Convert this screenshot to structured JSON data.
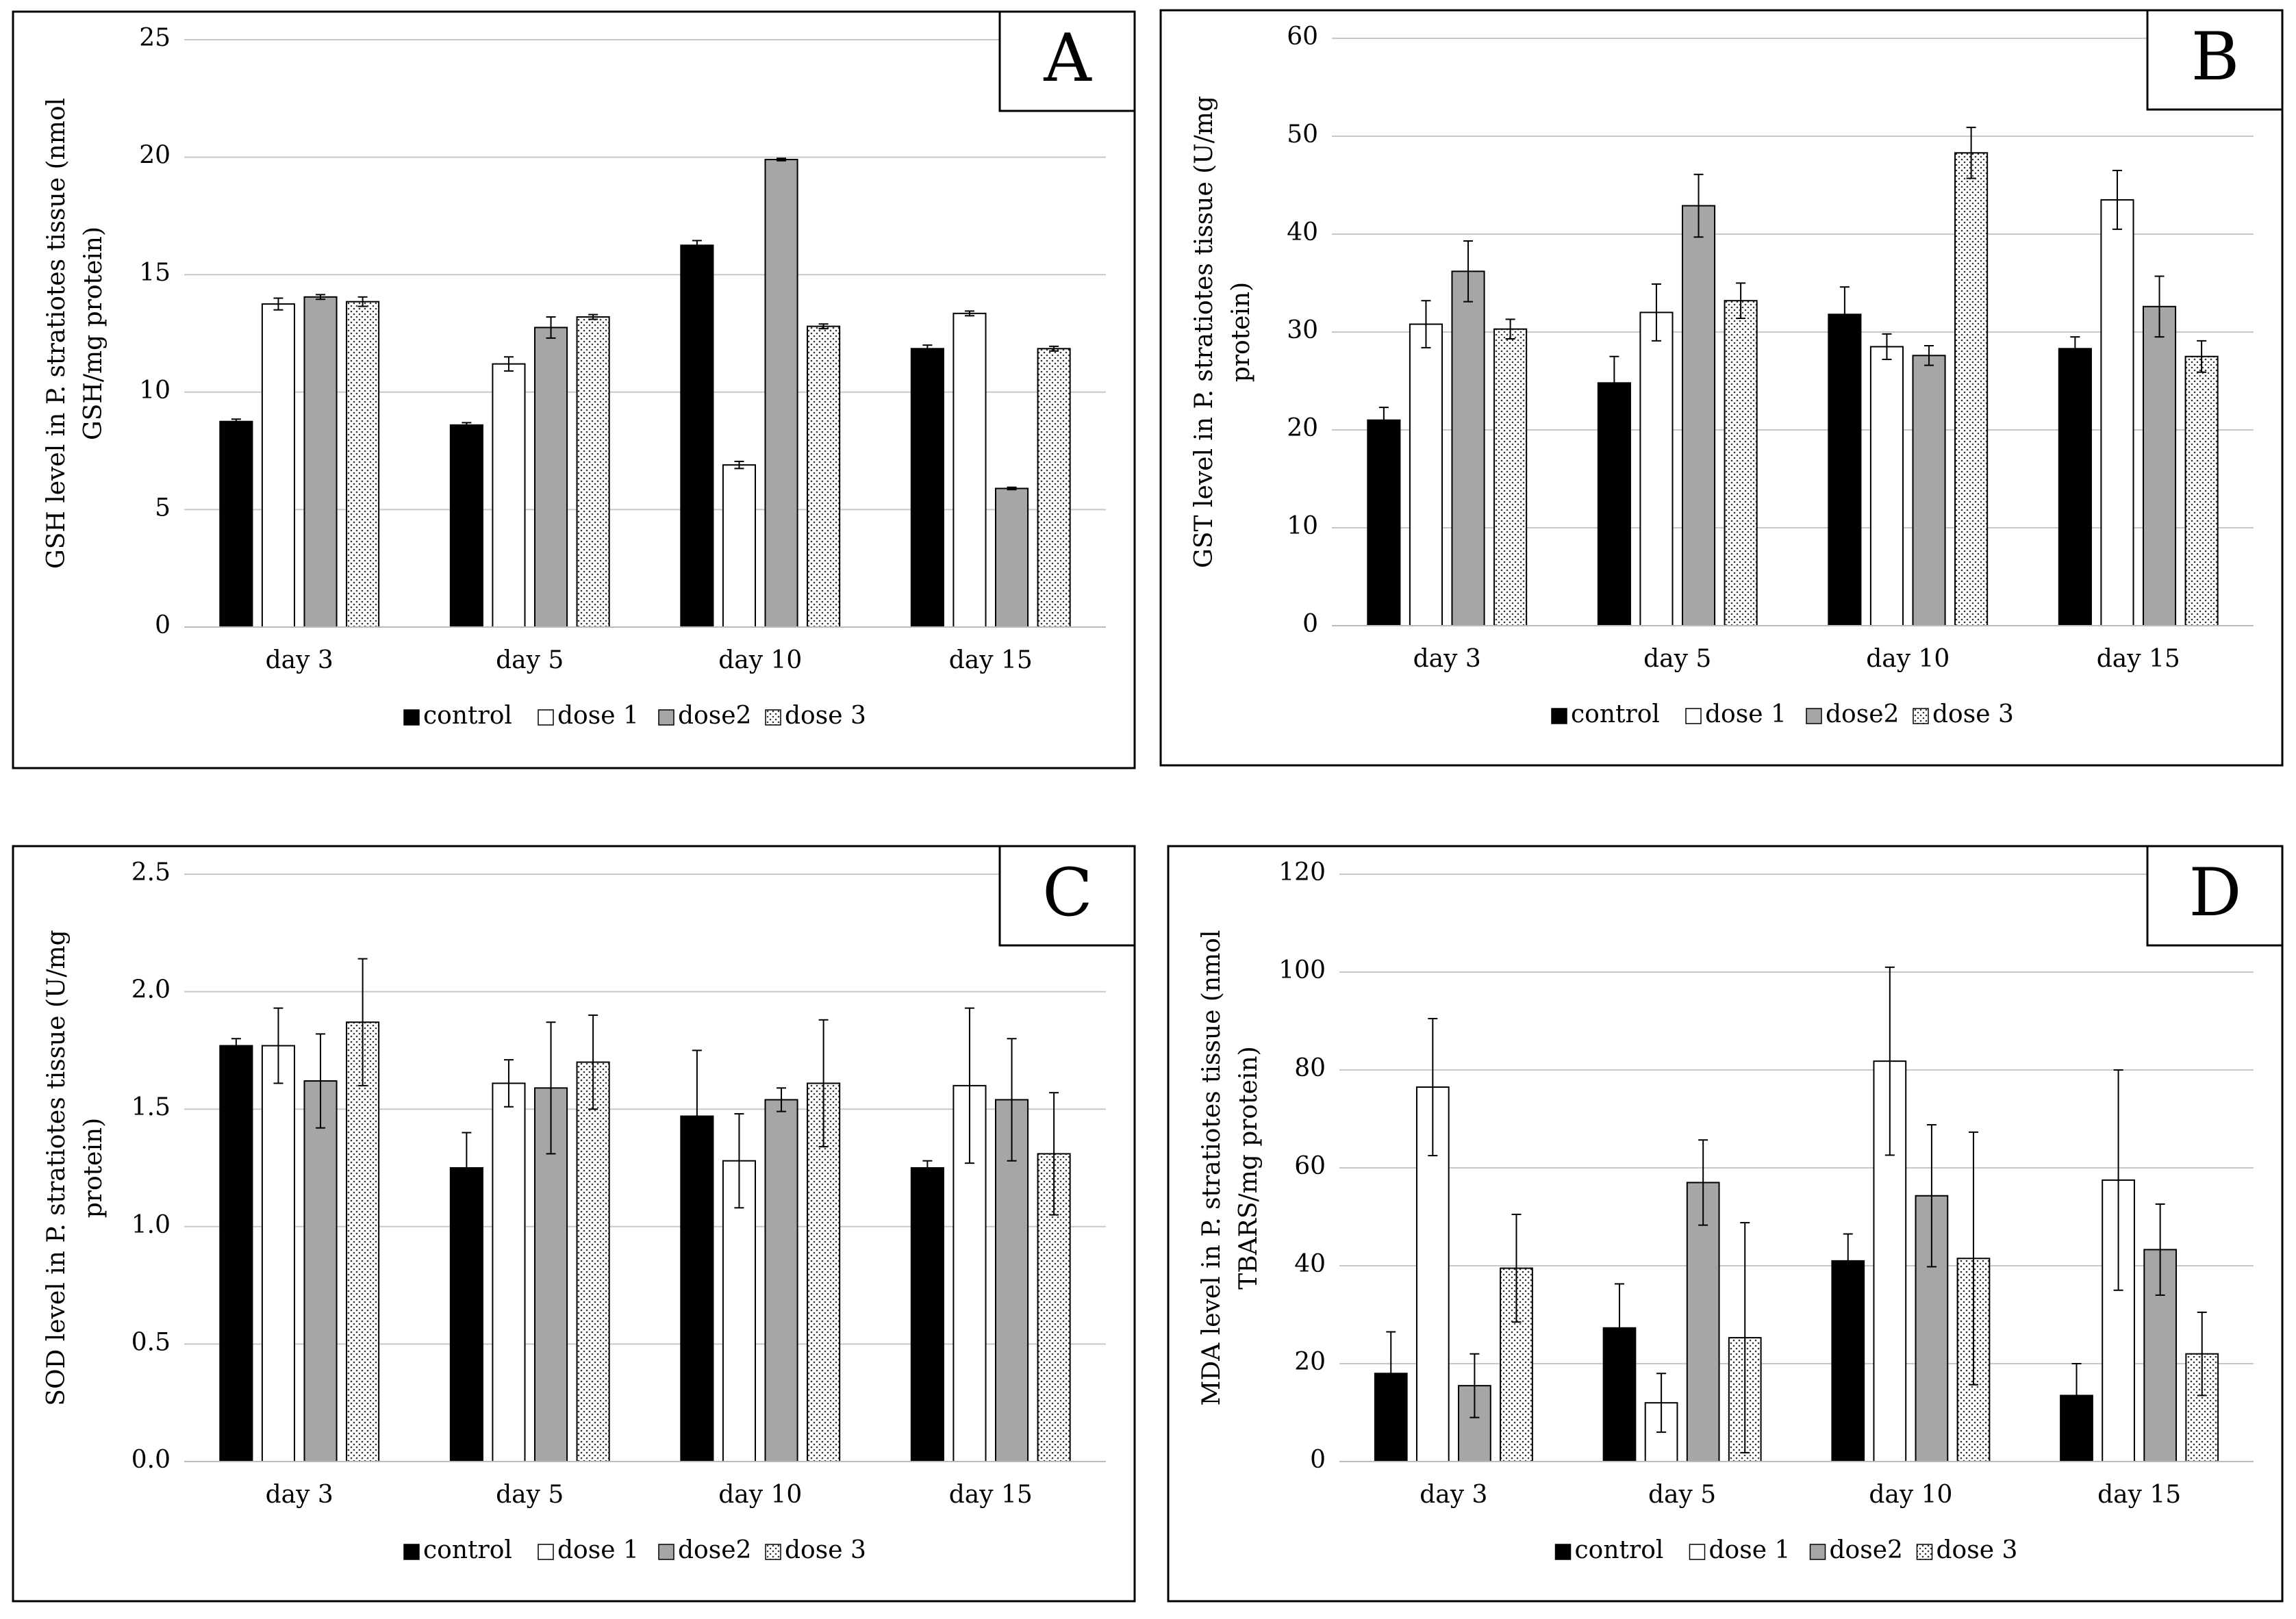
{
  "chart_data": [
    {
      "type": "bar",
      "panel_label": "A",
      "ylabel": [
        "GSH level in P. stratiotes tissue (nmol",
        "GSH/mg protein)"
      ],
      "categories": [
        "day 3",
        "day 5",
        "day 10",
        "day 15"
      ],
      "ylim": [
        0,
        25
      ],
      "yticks": [
        0,
        5,
        10,
        15,
        20,
        25
      ],
      "grid": true,
      "legend": "bottom",
      "series": [
        {
          "name": "control",
          "color": "#000000",
          "values": [
            8.75,
            8.6,
            16.25,
            11.85
          ],
          "errors": [
            0.1,
            0.1,
            0.2,
            0.15
          ]
        },
        {
          "name": "dose 1",
          "color": "#ffffff",
          "values": [
            13.75,
            11.2,
            6.9,
            13.35
          ],
          "errors": [
            0.25,
            0.3,
            0.15,
            0.1
          ]
        },
        {
          "name": "dose2",
          "color": "#a6a6a6",
          "values": [
            14.05,
            12.75,
            19.9,
            5.9
          ],
          "errors": [
            0.1,
            0.45,
            0.05,
            0.05
          ]
        },
        {
          "name": "dose 3",
          "color": "#ffffff",
          "hatch": "dots",
          "values": [
            13.85,
            13.2,
            12.8,
            11.85
          ],
          "errors": [
            0.2,
            0.1,
            0.1,
            0.1
          ]
        }
      ]
    },
    {
      "type": "bar",
      "panel_label": "B",
      "ylabel": [
        "GST level in P. stratiotes tissue (U/mg",
        "protein)"
      ],
      "categories": [
        "day 3",
        "day 5",
        "day 10",
        "day 15"
      ],
      "ylim": [
        0,
        60
      ],
      "yticks": [
        0,
        10,
        20,
        30,
        40,
        50,
        60
      ],
      "grid": true,
      "legend": "bottom",
      "series": [
        {
          "name": "control",
          "color": "#000000",
          "values": [
            21,
            24.8,
            31.8,
            28.3
          ],
          "errors": [
            1.3,
            2.7,
            2.8,
            1.2
          ]
        },
        {
          "name": "dose 1",
          "color": "#ffffff",
          "values": [
            30.8,
            32,
            28.5,
            43.5
          ],
          "errors": [
            2.4,
            2.9,
            1.3,
            3
          ]
        },
        {
          "name": "dose2",
          "color": "#a6a6a6",
          "values": [
            36.2,
            42.9,
            27.6,
            32.6
          ],
          "errors": [
            3.1,
            3.2,
            1,
            3.1
          ]
        },
        {
          "name": "dose 3",
          "color": "#ffffff",
          "hatch": "dots",
          "values": [
            30.3,
            33.2,
            48.3,
            27.5
          ],
          "errors": [
            1,
            1.8,
            2.6,
            1.6
          ]
        }
      ]
    },
    {
      "type": "bar",
      "panel_label": "C",
      "ylabel": [
        "SOD level in P. stratiotes tissue (U/mg",
        "protein)"
      ],
      "categories": [
        "day 3",
        "day 5",
        "day 10",
        "day 15"
      ],
      "ylim": [
        0,
        2.5
      ],
      "yticks": [
        {
          "value": 0,
          "label": "0.0"
        },
        0.5,
        {
          "value": 1,
          "label": "1.0"
        },
        1.5,
        {
          "value": 2,
          "label": "2.0"
        },
        2.5
      ],
      "grid": true,
      "legend": "bottom",
      "series": [
        {
          "name": "control",
          "color": "#000000",
          "values": [
            1.77,
            1.25,
            1.47,
            1.25
          ],
          "errors": [
            0.03,
            0.15,
            0.28,
            0.03
          ]
        },
        {
          "name": "dose 1",
          "color": "#ffffff",
          "values": [
            1.77,
            1.61,
            1.28,
            1.6
          ],
          "errors": [
            0.16,
            0.1,
            0.2,
            0.33
          ]
        },
        {
          "name": "dose2",
          "color": "#a6a6a6",
          "values": [
            1.62,
            1.59,
            1.54,
            1.54
          ],
          "errors": [
            0.2,
            0.28,
            0.05,
            0.26
          ]
        },
        {
          "name": "dose 3",
          "color": "#ffffff",
          "hatch": "dots",
          "values": [
            1.87,
            1.7,
            1.61,
            1.31
          ],
          "errors": [
            0.27,
            0.2,
            0.27,
            0.26
          ]
        }
      ]
    },
    {
      "type": "bar",
      "panel_label": "D",
      "ylabel": [
        "MDA level in P. stratiotes tissue (nmol",
        "TBARS/mg protein)"
      ],
      "categories": [
        "day 3",
        "day 5",
        "day 10",
        "day 15"
      ],
      "ylim": [
        0,
        120
      ],
      "yticks": [
        0,
        20,
        40,
        60,
        80,
        100,
        120
      ],
      "grid": true,
      "legend": "bottom",
      "series": [
        {
          "name": "control",
          "color": "#000000",
          "values": [
            18,
            27.3,
            41,
            13.5
          ],
          "errors": [
            8.5,
            9,
            5.5,
            6.5
          ]
        },
        {
          "name": "dose 1",
          "color": "#ffffff",
          "values": [
            76.5,
            12,
            81.8,
            57.5
          ],
          "errors": [
            14,
            6,
            19.2,
            22.5
          ]
        },
        {
          "name": "dose2",
          "color": "#a6a6a6",
          "values": [
            15.5,
            57,
            54.3,
            43.3
          ],
          "errors": [
            6.5,
            8.7,
            14.5,
            9.3
          ]
        },
        {
          "name": "dose 3",
          "color": "#ffffff",
          "hatch": "dots",
          "values": [
            39.5,
            25.3,
            41.5,
            22
          ],
          "errors": [
            11,
            23.5,
            25.8,
            8.5
          ]
        }
      ]
    }
  ]
}
